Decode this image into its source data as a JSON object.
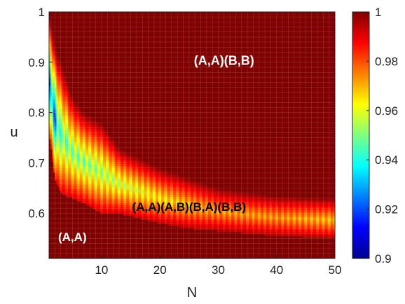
{
  "chart_data": {
    "type": "heatmap",
    "title": "",
    "xlabel": "N",
    "ylabel": "u",
    "xlim": [
      1,
      50
    ],
    "ylim": [
      0.51,
      1.0
    ],
    "x_ticks": [
      10,
      20,
      30,
      40,
      50
    ],
    "y_ticks": [
      0.6,
      0.7,
      0.8,
      0.9,
      1
    ],
    "x_tick_labels": [
      "10",
      "20",
      "30",
      "40",
      "50"
    ],
    "y_tick_labels": [
      "0.6",
      "0.7",
      "0.8",
      "0.9",
      "1"
    ],
    "colorbar": {
      "range": [
        0.9,
        1.0
      ],
      "ticks": [
        0.9,
        0.92,
        0.94,
        0.96,
        0.98,
        1
      ],
      "tick_labels": [
        "0.9",
        "0.92",
        "0.94",
        "0.96",
        "0.98",
        "1"
      ],
      "colormap": "jet",
      "location": "right"
    },
    "grid": true,
    "background_value": 1.0,
    "annotations": [
      {
        "text": "(A,A)(B,B)",
        "x": 31,
        "y": 0.895,
        "color": "#ffffff"
      },
      {
        "text": "(A,A)(A,B)(B,A)(B,B)",
        "x": 25,
        "y": 0.605,
        "color": "#000000"
      },
      {
        "text": "(A,A)",
        "x": 5,
        "y": 0.545,
        "color": "#ffffff"
      }
    ],
    "band": {
      "description_points": [
        {
          "N": 1,
          "u_low": 0.76,
          "u_high": 1.0,
          "min_value": 0.9
        },
        {
          "N": 2,
          "u_low": 0.67,
          "u_high": 0.93,
          "min_value": 0.905
        },
        {
          "N": 3,
          "u_low": 0.64,
          "u_high": 0.9,
          "min_value": 0.93
        },
        {
          "N": 5,
          "u_low": 0.63,
          "u_high": 0.83,
          "min_value": 0.935
        },
        {
          "N": 7,
          "u_low": 0.62,
          "u_high": 0.8,
          "min_value": 0.935
        },
        {
          "N": 10,
          "u_low": 0.6,
          "u_high": 0.78,
          "min_value": 0.94
        },
        {
          "N": 13,
          "u_low": 0.6,
          "u_high": 0.73,
          "min_value": 0.945
        },
        {
          "N": 20,
          "u_low": 0.58,
          "u_high": 0.69,
          "min_value": 0.955
        },
        {
          "N": 25,
          "u_low": 0.57,
          "u_high": 0.67,
          "min_value": 0.96
        },
        {
          "N": 30,
          "u_low": 0.565,
          "u_high": 0.65,
          "min_value": 0.965
        },
        {
          "N": 40,
          "u_low": 0.555,
          "u_high": 0.635,
          "min_value": 0.965
        },
        {
          "N": 50,
          "u_low": 0.55,
          "u_high": 0.63,
          "min_value": 0.96
        }
      ]
    }
  },
  "colors": {
    "background_dark_red": "#800000",
    "axis": "#222222",
    "grid": "#ffffff"
  }
}
